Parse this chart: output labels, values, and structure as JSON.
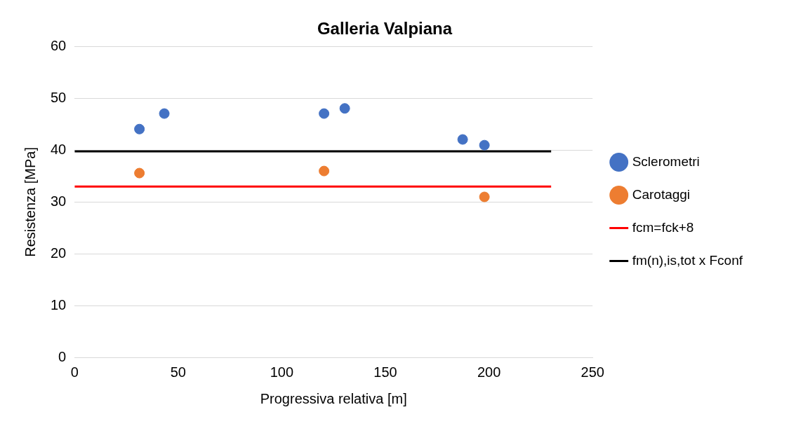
{
  "chart_data": {
    "type": "scatter",
    "title": "Galleria Valpiana",
    "xlabel": "Progressiva relativa [m]",
    "ylabel": "Resistenza [MPa]",
    "xlim": [
      0,
      250
    ],
    "xticks": [
      0,
      50,
      100,
      150,
      200,
      250
    ],
    "ylim": [
      0,
      60
    ],
    "yticks": [
      0,
      10,
      20,
      30,
      40,
      50,
      60
    ],
    "grid": "y",
    "legend": "right",
    "marker": "circle",
    "series": [
      {
        "name": "Sclerometri",
        "type": "scatter",
        "color": "#4472c4",
        "x": [
          31.3,
          43.3,
          120.4,
          130.4,
          187.3,
          197.8
        ],
        "values": [
          44.1,
          47.1,
          47.1,
          48.1,
          42.1,
          41.0
        ]
      },
      {
        "name": "Carotaggi",
        "type": "scatter",
        "color": "#ed7d31",
        "x": [
          31.3,
          120.4,
          197.8
        ],
        "values": [
          35.6,
          36.0,
          31.0
        ]
      },
      {
        "name": "fcm=fck+8",
        "type": "line",
        "color": "#ff0000",
        "marker": "none",
        "line_style": "solid",
        "x": [
          0,
          230
        ],
        "values": [
          33.0,
          33.0
        ]
      },
      {
        "name": "fm(n),is,tot x Fconf",
        "type": "line",
        "color": "#000000",
        "marker": "none",
        "line_style": "solid",
        "x": [
          0,
          230
        ],
        "values": [
          39.8,
          39.8
        ]
      }
    ]
  }
}
